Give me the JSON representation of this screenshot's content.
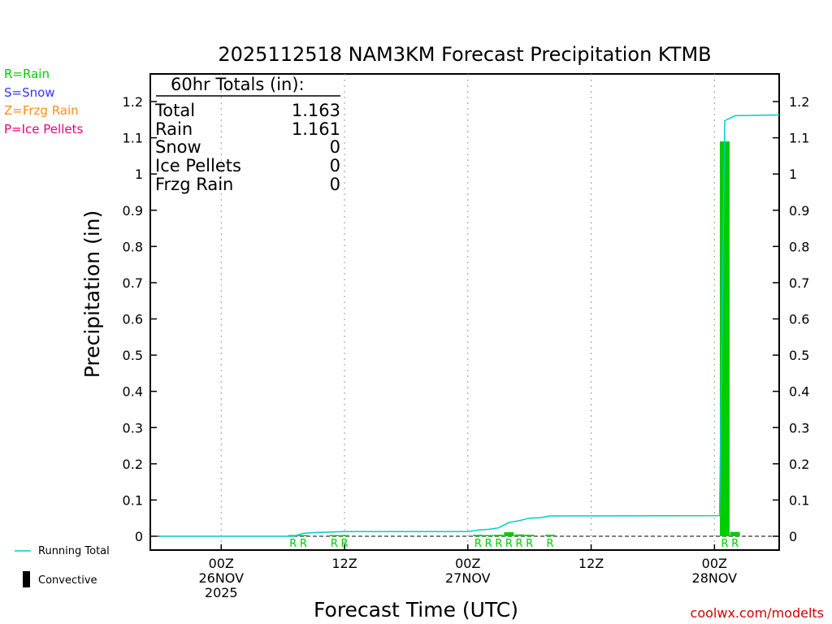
{
  "title": "2025112518 NAM3KM Forecast Precipitation KTMB",
  "legend_types": [
    {
      "label": "R=Rain",
      "color": "#00cc00"
    },
    {
      "label": "S=Snow",
      "color": "#3333ff"
    },
    {
      "label": "Z=Frzg Rain",
      "color": "#ff8c1a"
    },
    {
      "label": "P=Ice Pellets",
      "color": "#e6007e"
    }
  ],
  "legend_bottom": {
    "running_total": {
      "label": "Running Total",
      "color": "#00cccc"
    },
    "convective": {
      "label": "Convective",
      "color": "#000000"
    }
  },
  "totals_box": {
    "heading": "60hr Totals (in):",
    "rows": [
      {
        "label": "Total",
        "value": "1.163"
      },
      {
        "label": "Rain",
        "value": "1.161"
      },
      {
        "label": "Snow",
        "value": "0"
      },
      {
        "label": "Ice Pellets",
        "value": "0"
      },
      {
        "label": "Frzg Rain",
        "value": "0"
      }
    ]
  },
  "credit": "coolwx.com/modelts",
  "chart_data": {
    "type": "bar",
    "title": "2025112518 NAM3KM Forecast Precipitation KTMB",
    "xlabel": "Forecast Time (UTC)",
    "ylabel": "Precipitation (in)",
    "x_unit": "forecast hour",
    "x_ticks": [
      {
        "hour": 6,
        "lines": [
          "00Z",
          "26NOV",
          "2025"
        ]
      },
      {
        "hour": 18,
        "lines": [
          "12Z"
        ]
      },
      {
        "hour": 30,
        "lines": [
          "00Z",
          "27NOV"
        ]
      },
      {
        "hour": 42,
        "lines": [
          "12Z"
        ]
      },
      {
        "hour": 54,
        "lines": [
          "00Z",
          "28NOV"
        ]
      }
    ],
    "xlim": [
      -0.9,
      60.3
    ],
    "ylim": [
      0,
      1.25
    ],
    "y_ticks": [
      0,
      0.1,
      0.2,
      0.3,
      0.4,
      0.5,
      0.6,
      0.7,
      0.8,
      0.9,
      1,
      1.1,
      1.2
    ],
    "grid_x": true,
    "grid_y": false,
    "series": [
      {
        "name": "Rain",
        "kind": "bar",
        "color": "#00cc00",
        "points": [
          {
            "hour": 13,
            "value": 0.003
          },
          {
            "hour": 14,
            "value": 0.002
          },
          {
            "hour": 17,
            "value": 0.001
          },
          {
            "hour": 18,
            "value": 0.001
          },
          {
            "hour": 31,
            "value": 0.004
          },
          {
            "hour": 32,
            "value": 0.002
          },
          {
            "hour": 33,
            "value": 0.004
          },
          {
            "hour": 34,
            "value": 0.011
          },
          {
            "hour": 35,
            "value": 0.005
          },
          {
            "hour": 36,
            "value": 0.004
          },
          {
            "hour": 38,
            "value": 0.004
          },
          {
            "hour": 55,
            "value": 1.09
          },
          {
            "hour": 56,
            "value": 0.012
          }
        ]
      },
      {
        "name": "Running Total",
        "kind": "line",
        "color": "#00cccc",
        "points": [
          {
            "hour": 0,
            "value": 0
          },
          {
            "hour": 13,
            "value": 0
          },
          {
            "hour": 14,
            "value": 0.008
          },
          {
            "hour": 15,
            "value": 0.01
          },
          {
            "hour": 17,
            "value": 0.012
          },
          {
            "hour": 18,
            "value": 0.013
          },
          {
            "hour": 30,
            "value": 0.013
          },
          {
            "hour": 31,
            "value": 0.017
          },
          {
            "hour": 32,
            "value": 0.019
          },
          {
            "hour": 33,
            "value": 0.023
          },
          {
            "hour": 34,
            "value": 0.038
          },
          {
            "hour": 35,
            "value": 0.043
          },
          {
            "hour": 36,
            "value": 0.05
          },
          {
            "hour": 37,
            "value": 0.051
          },
          {
            "hour": 38,
            "value": 0.056
          },
          {
            "hour": 54.5,
            "value": 0.057
          },
          {
            "hour": 55,
            "value": 1.147
          },
          {
            "hour": 56,
            "value": 1.161
          },
          {
            "hour": 60.3,
            "value": 1.163
          }
        ]
      }
    ],
    "type_markers": [
      {
        "hour": 13,
        "label": "R"
      },
      {
        "hour": 14,
        "label": "R"
      },
      {
        "hour": 17,
        "label": "R"
      },
      {
        "hour": 18,
        "label": "R"
      },
      {
        "hour": 31,
        "label": "R"
      },
      {
        "hour": 32,
        "label": "R"
      },
      {
        "hour": 33,
        "label": "R"
      },
      {
        "hour": 34,
        "label": "R"
      },
      {
        "hour": 35,
        "label": "R"
      },
      {
        "hour": 36,
        "label": "R"
      },
      {
        "hour": 38,
        "label": "R"
      },
      {
        "hour": 55,
        "label": "R"
      },
      {
        "hour": 56,
        "label": "R"
      }
    ]
  }
}
